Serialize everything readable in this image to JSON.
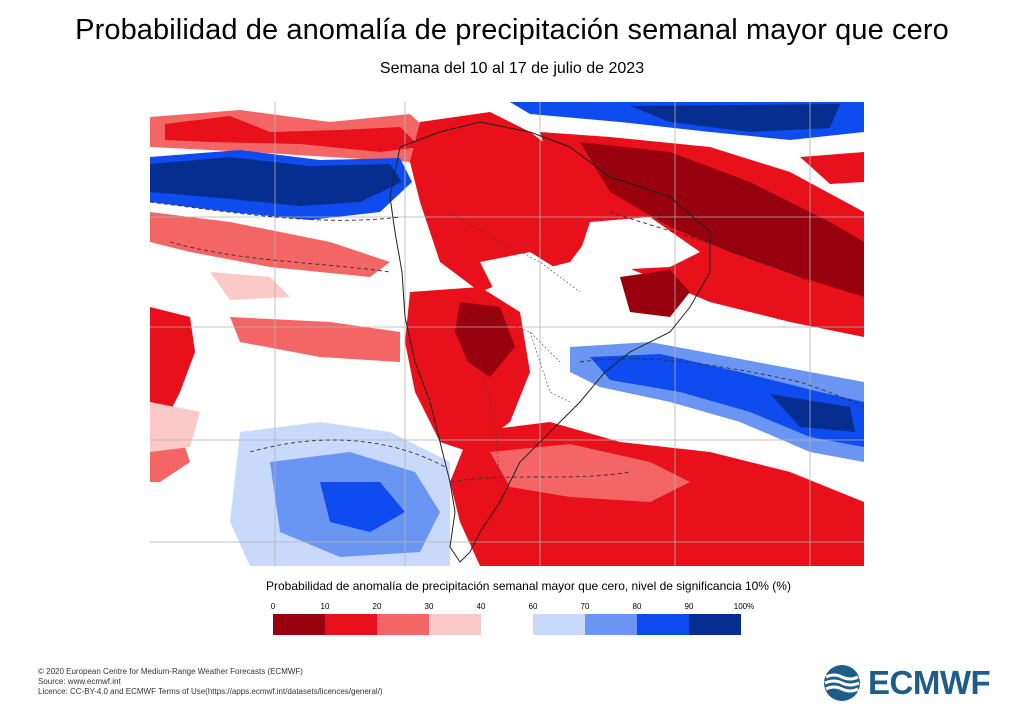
{
  "header": {
    "title": "Probabilidad de anomalía de precipitación semanal mayor que cero",
    "subtitle": "Semana del 10 al 17 de julio de 2023"
  },
  "legend": {
    "title": "Probabilidad de anomalía de precipitación semanal mayor que cero, nivel de significancia 10% (%)",
    "ticks": [
      "0",
      "10",
      "20",
      "30",
      "40",
      "60",
      "70",
      "80",
      "90",
      "100%"
    ],
    "swatches": [
      {
        "color": "#99000d"
      },
      {
        "color": "#e8101a"
      },
      {
        "color": "#f46666"
      },
      {
        "color": "#fcc9c9"
      },
      {
        "color": "#c9d9fb"
      },
      {
        "color": "#6b95f2"
      },
      {
        "color": "#0f4cf0"
      },
      {
        "color": "#062e91"
      }
    ]
  },
  "footer": {
    "line1": "© 2020 European Centre for Medium-Range Weather Forecasts (ECMWF)",
    "line2": "Source: www.ecmwf.int",
    "line3": "Licence: CC-BY-4.0 and ECMWF Terms of Use(https://apps.ecmwf.int/datasets/licences/general/)"
  },
  "logo": {
    "text": "ECMWF",
    "color": "#1e5c8a"
  },
  "map": {
    "colors": {
      "ocean": "#ffffff",
      "dark_red": "#99000d",
      "red": "#e8101a",
      "light_red": "#f46666",
      "pale_red": "#fcc9c9",
      "pale_blue": "#c9d9fb",
      "light_blue": "#6b95f2",
      "blue": "#0f4cf0",
      "dark_blue": "#062e91"
    }
  }
}
